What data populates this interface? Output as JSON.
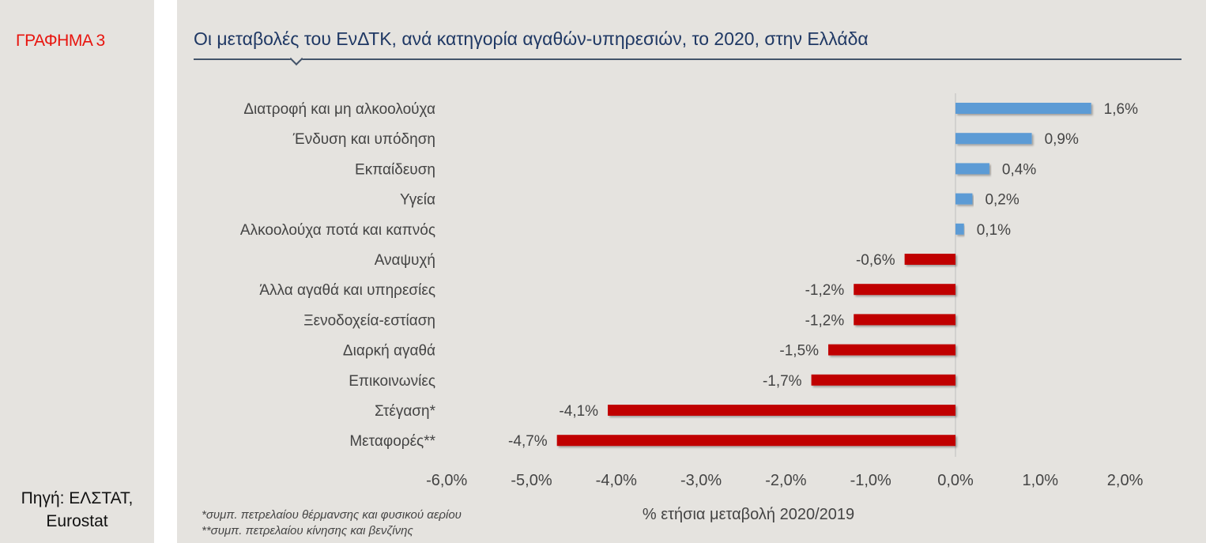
{
  "graph_label": "ΓΡΑΦΗΜΑ 3",
  "source": [
    "Πηγή: ΕΛΣΤΑΤ,",
    "Eurostat"
  ],
  "notes": [
    "*συμπ. πετρελαίου  θέρμανσης  και φυσικού  αερίου",
    "**συμπ. πετρελαίου  κίνησης και βενζίνης"
  ],
  "colors": {
    "positive": "#5b9bd5",
    "negative": "#c00000"
  },
  "chart_data": {
    "type": "bar",
    "orientation": "horizontal",
    "title": "Οι μεταβολές του ΕνΔΤΚ, ανά κατηγορία αγαθών-υπηρεσιών, το 2020, στην Ελλάδα",
    "xlabel": "% ετήσια μεταβολή 2020/2019",
    "categories": [
      "Διατροφή και μη αλκοολούχα",
      "Ένδυση και υπόδηση",
      "Εκπαίδευση",
      "Υγεία",
      "Αλκοολούχα ποτά και καπνός",
      "Αναψυχή",
      "Άλλα αγαθά και υπηρεσίες",
      "Ξενοδοχεία-εστίαση",
      "Διαρκή αγαθά",
      "Επικοινωνίες",
      "Στέγαση*",
      "Μεταφορές**"
    ],
    "values": [
      1.6,
      0.9,
      0.4,
      0.2,
      0.1,
      -0.6,
      -1.2,
      -1.2,
      -1.5,
      -1.7,
      -4.1,
      -4.7
    ],
    "labels": [
      "1,6%",
      "0,9%",
      "0,4%",
      "0,2%",
      "0,1%",
      "-0,6%",
      "-1,2%",
      "-1,2%",
      "-1,5%",
      "-1,7%",
      "-4,1%",
      "-4,7%"
    ],
    "xlim": [
      -6,
      2
    ],
    "xticks": [
      "-6,0%",
      "-5,0%",
      "-4,0%",
      "-3,0%",
      "-2,0%",
      "-1,0%",
      "0,0%",
      "1,0%",
      "2,0%"
    ]
  }
}
